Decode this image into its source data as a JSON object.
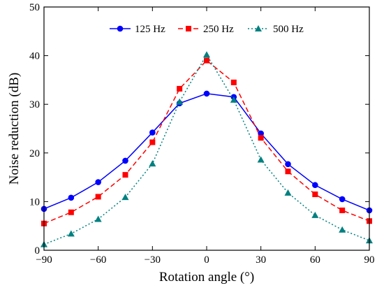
{
  "chart_data": {
    "type": "line",
    "title": "",
    "xlabel": "Rotation angle (°)",
    "ylabel": "Noise reduction (dB)",
    "xlim": [
      -90,
      90
    ],
    "ylim": [
      0,
      50
    ],
    "xticks": [
      -90,
      -60,
      -30,
      0,
      30,
      60,
      90
    ],
    "xtick_labels": [
      "−90",
      "−60",
      "−30",
      "0",
      "30",
      "60",
      "90"
    ],
    "yticks": [
      0,
      10,
      20,
      30,
      40,
      50
    ],
    "ytick_labels": [
      "0",
      "10",
      "20",
      "30",
      "40",
      "50"
    ],
    "grid": false,
    "legend_position": "top-center",
    "x": [
      -90,
      -75,
      -60,
      -45,
      -30,
      -15,
      0,
      15,
      30,
      45,
      60,
      75,
      90
    ],
    "series": [
      {
        "name": "125 Hz",
        "color": "#0000ff",
        "linestyle": "solid",
        "marker": "circle",
        "values": [
          8.5,
          10.8,
          14.0,
          18.4,
          24.2,
          30.2,
          32.2,
          31.5,
          24.0,
          17.7,
          13.4,
          10.5,
          8.2
        ]
      },
      {
        "name": "250 Hz",
        "color": "#ff0000",
        "linestyle": "dashed",
        "marker": "square",
        "values": [
          5.5,
          7.8,
          11.0,
          15.5,
          22.2,
          33.2,
          39.0,
          34.5,
          23.1,
          16.2,
          11.5,
          8.2,
          6.0
        ]
      },
      {
        "name": "500 Hz",
        "color": "#008080",
        "linestyle": "dotted",
        "marker": "triangle",
        "values": [
          1.2,
          3.4,
          6.4,
          10.9,
          17.8,
          30.5,
          40.2,
          30.9,
          18.6,
          11.8,
          7.2,
          4.2,
          2.0
        ]
      }
    ]
  }
}
